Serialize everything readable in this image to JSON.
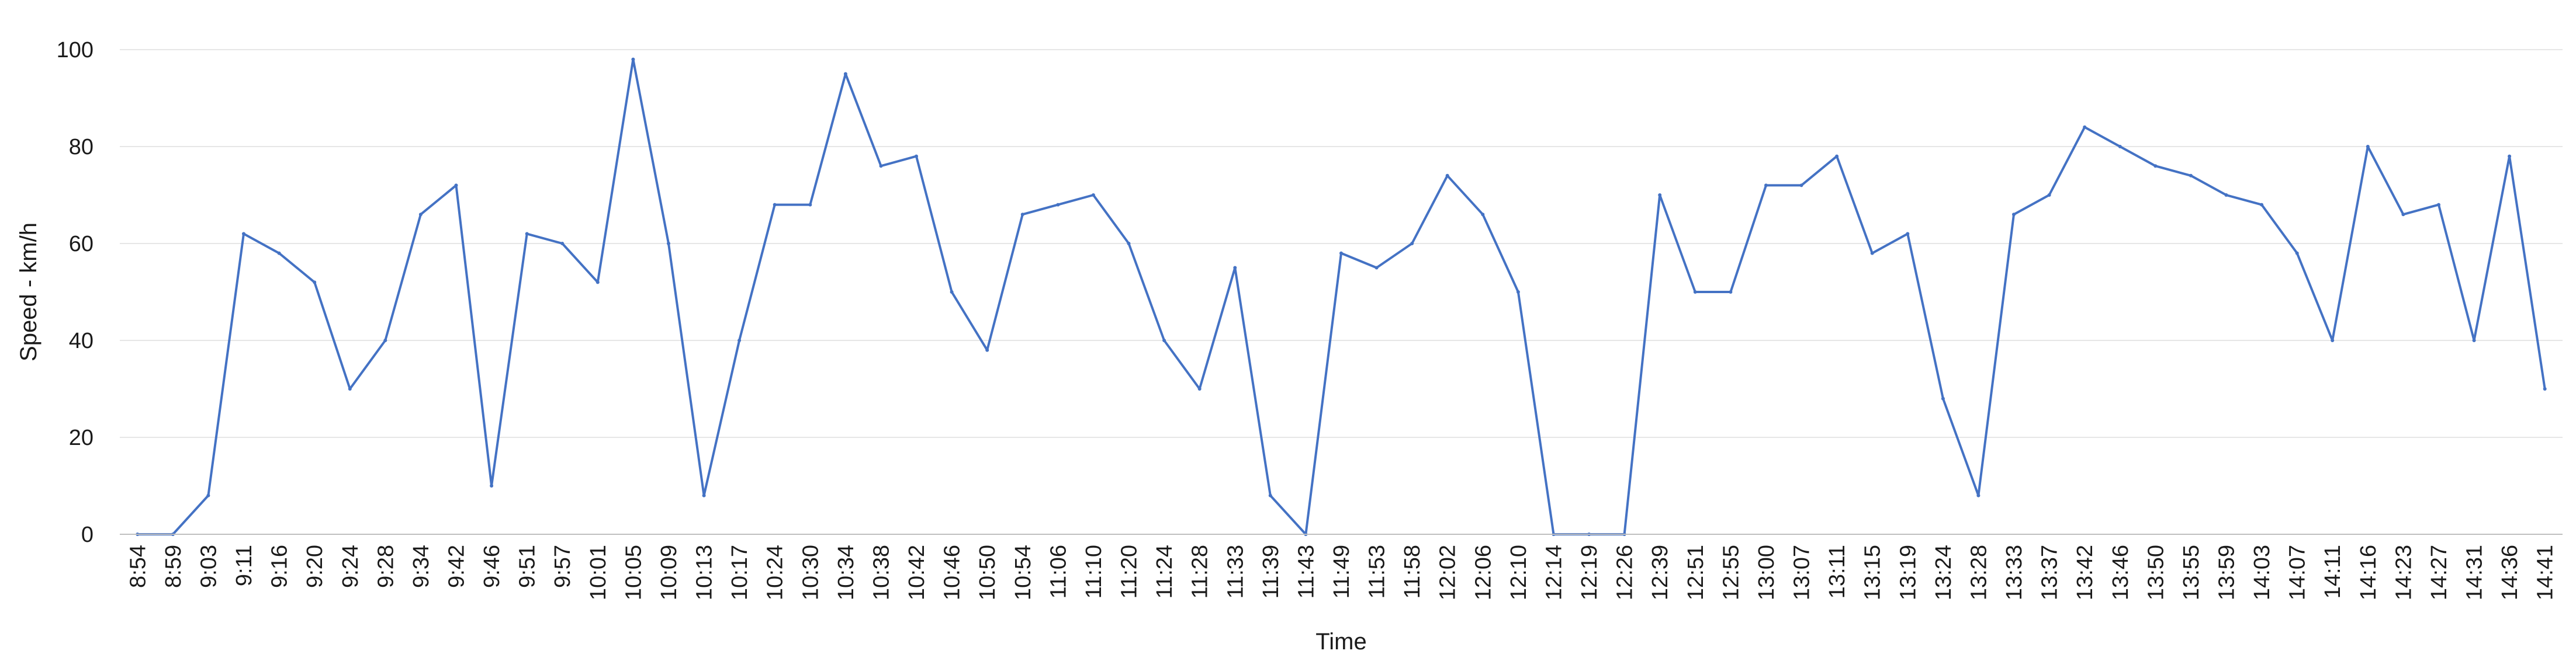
{
  "chart_data": {
    "type": "line",
    "title": "",
    "xlabel": "Time",
    "ylabel": "Speed - km/h",
    "ylim": [
      0,
      100
    ],
    "yticks": [
      0,
      20,
      40,
      60,
      80,
      100
    ],
    "grid": true,
    "legend": "none",
    "color": "#4472c4",
    "categories": [
      "8:54",
      "8:59",
      "9:03",
      "9:11",
      "9:16",
      "9:20",
      "9:24",
      "9:28",
      "9:34",
      "9:42",
      "9:46",
      "9:51",
      "9:57",
      "10:01",
      "10:05",
      "10:09",
      "10:13",
      "10:17",
      "10:24",
      "10:30",
      "10:34",
      "10:38",
      "10:42",
      "10:46",
      "10:50",
      "10:54",
      "11:06",
      "11:10",
      "11:20",
      "11:24",
      "11:28",
      "11:33",
      "11:39",
      "11:43",
      "11:49",
      "11:53",
      "11:58",
      "12:02",
      "12:06",
      "12:10",
      "12:14",
      "12:19",
      "12:26",
      "12:39",
      "12:51",
      "12:55",
      "13:00",
      "13:07",
      "13:11",
      "13:15",
      "13:19",
      "13:24",
      "13:28",
      "13:33",
      "13:37",
      "13:42",
      "13:46",
      "13:50",
      "13:55",
      "13:59",
      "14:03",
      "14:07",
      "14:11",
      "14:16",
      "14:23",
      "14:27",
      "14:31",
      "14:36",
      "14:41"
    ],
    "series": [
      {
        "values": [
          0,
          0,
          8,
          62,
          58,
          52,
          30,
          40,
          66,
          72,
          10,
          62,
          60,
          52,
          98,
          60,
          8,
          40,
          68,
          68,
          95,
          76,
          78,
          50,
          38,
          66,
          68,
          70,
          60,
          40,
          30,
          55,
          8,
          0,
          58,
          55,
          60,
          74,
          66,
          50,
          0,
          0,
          0,
          70,
          50,
          50,
          72,
          72,
          78,
          58,
          62,
          28,
          8,
          66,
          70,
          84,
          80,
          76,
          74,
          70,
          68,
          58,
          40,
          80,
          66,
          68,
          40,
          78,
          30
        ]
      }
    ]
  }
}
